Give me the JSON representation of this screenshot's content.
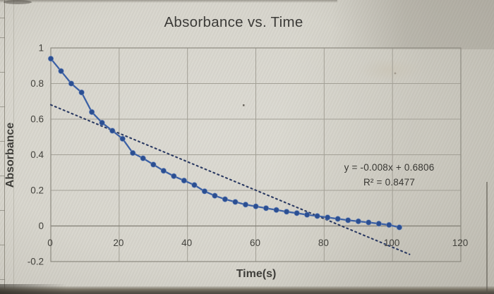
{
  "chart_data": {
    "type": "scatter",
    "title": "Absorbance vs. Time",
    "xlabel": "Time(s)",
    "ylabel": "Absorbance",
    "xlim": [
      0,
      120
    ],
    "ylim": [
      -0.2,
      1
    ],
    "x_ticks": [
      0,
      20,
      40,
      60,
      80,
      100,
      120
    ],
    "y_ticks": [
      1,
      0.8,
      0.6,
      0.4,
      0.2,
      0,
      -0.2
    ],
    "grid": true,
    "series": [
      {
        "name": "Absorbance",
        "style": "line-with-markers",
        "color": "#2b4f92",
        "line_color": "#3c61a5",
        "x": [
          0,
          3,
          6,
          9,
          12,
          15,
          18,
          21,
          24,
          27,
          30,
          33,
          36,
          39,
          42,
          45,
          48,
          51,
          54,
          57,
          60,
          63,
          66,
          69,
          72,
          75,
          78,
          81,
          84,
          87,
          90,
          93,
          96,
          99,
          102
        ],
        "y": [
          0.94,
          0.87,
          0.8,
          0.75,
          0.64,
          0.58,
          0.535,
          0.49,
          0.41,
          0.38,
          0.345,
          0.31,
          0.28,
          0.255,
          0.23,
          0.195,
          0.17,
          0.15,
          0.135,
          0.12,
          0.11,
          0.1,
          0.09,
          0.08,
          0.072,
          0.063,
          0.056,
          0.048,
          0.04,
          0.032,
          0.026,
          0.02,
          0.013,
          0.006,
          -0.008
        ]
      }
    ],
    "trendline": {
      "equation": "y = -0.008x + 0.6806",
      "r_squared": "R² = 0.8477",
      "slope": -0.008,
      "intercept": 0.6806,
      "x_start": 0,
      "x_end": 105,
      "style": "dotted",
      "color": "#2b3a62"
    },
    "colors": {
      "background": "#d5d3ca",
      "gridline": "#a3a096",
      "plot_frame": "#8e8b81",
      "axis_text": "#43423d",
      "title_text": "#3c3b38"
    },
    "legend": "none"
  }
}
